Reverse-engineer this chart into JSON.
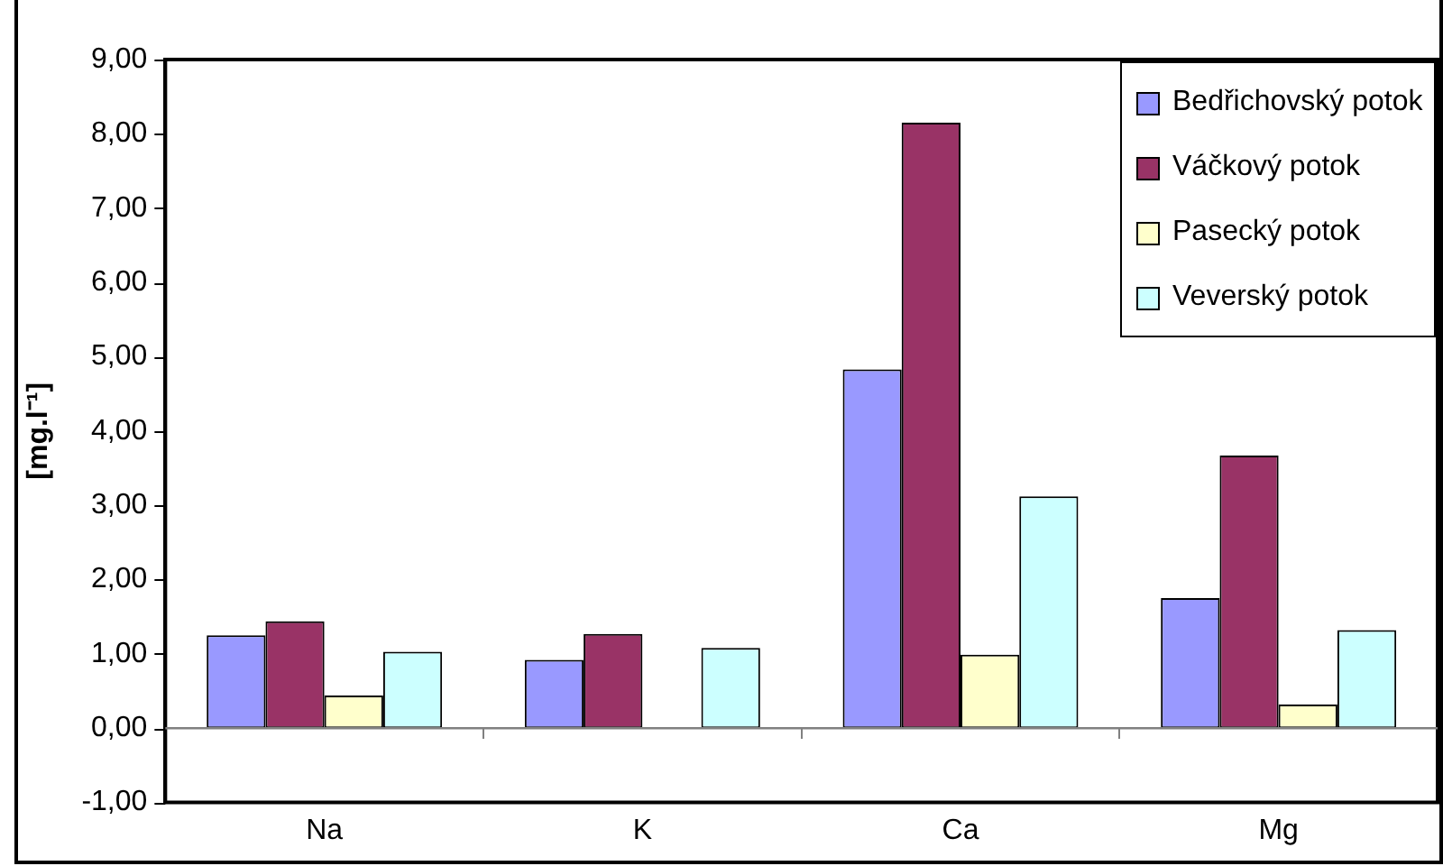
{
  "chart_data": {
    "type": "bar",
    "ylabel": "[mg.l⁻¹]",
    "categories": [
      "Na",
      "K",
      "Ca",
      "Mg"
    ],
    "series": [
      {
        "name": "Bedřichovský potok",
        "color": "#9999ff",
        "values": [
          1.25,
          0.92,
          4.83,
          1.75
        ]
      },
      {
        "name": "Váčkový potok",
        "color": "#993366",
        "values": [
          1.44,
          1.27,
          8.15,
          3.67
        ]
      },
      {
        "name": "Pasecký potok",
        "color": "#ffffcc",
        "values": [
          0.44,
          null,
          0.99,
          0.32
        ]
      },
      {
        "name": "Veverský potok",
        "color": "#ccffff",
        "values": [
          1.03,
          1.08,
          3.12,
          1.32
        ]
      }
    ],
    "ylim": [
      -1,
      9
    ],
    "yticks": [
      {
        "value": -1,
        "label": "-1,00"
      },
      {
        "value": 0,
        "label": "0,00"
      },
      {
        "value": 1,
        "label": "1,00"
      },
      {
        "value": 2,
        "label": "2,00"
      },
      {
        "value": 3,
        "label": "3,00"
      },
      {
        "value": 4,
        "label": "4,00"
      },
      {
        "value": 5,
        "label": "5,00"
      },
      {
        "value": 6,
        "label": "6,00"
      },
      {
        "value": 7,
        "label": "7,00"
      },
      {
        "value": 8,
        "label": "8,00"
      },
      {
        "value": 9,
        "label": "9,00"
      }
    ],
    "ref_lines": [
      {
        "axis": "y",
        "value": 0,
        "color": "#808080"
      }
    ],
    "grid": false,
    "legend": "top right"
  }
}
